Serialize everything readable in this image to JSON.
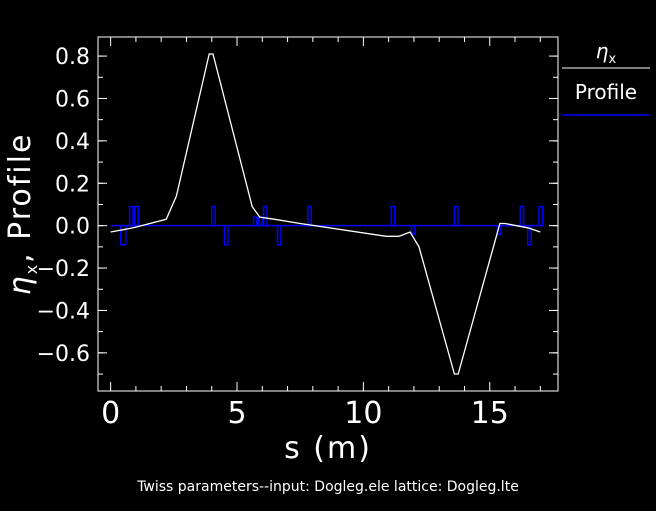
{
  "chart_data": {
    "type": "line",
    "xlabel": "s  (m)",
    "ylabel_symbol": "η",
    "ylabel_sub": "x",
    "ylabel_rest": ",  Profile",
    "caption": "Twiss parameters--input: Dogleg.ele   lattice: Dogleg.lte",
    "xlim": [
      -0.5,
      17.7
    ],
    "ylim": [
      -0.78,
      0.89
    ],
    "xticks": [
      0,
      5,
      10,
      15
    ],
    "yticks": [
      0.8,
      0.6,
      0.4,
      0.2,
      0.0,
      -0.2,
      -0.4,
      -0.6
    ],
    "ytick_labels": [
      "0.8",
      "0.6",
      "0.4",
      "0.2",
      "0.0",
      "−0.2",
      "−0.4",
      "−0.6"
    ],
    "legend": {
      "entries": [
        {
          "symbol": "η",
          "sub": "x",
          "color": "#ffffff"
        },
        {
          "label": "Profile",
          "color": "#0000ff"
        }
      ]
    },
    "series": [
      {
        "name": "ηx",
        "color": "#ffffff",
        "x": [
          0.0,
          0.9,
          2.2,
          2.6,
          3.9,
          4.05,
          5.6,
          5.9,
          6.5,
          7.5,
          10.9,
          11.4,
          11.85,
          12.2,
          13.6,
          13.75,
          15.4,
          15.6,
          16.5,
          17.0
        ],
        "y": [
          -0.03,
          -0.01,
          0.03,
          0.14,
          0.81,
          0.81,
          0.09,
          0.04,
          0.03,
          0.01,
          -0.05,
          -0.05,
          -0.03,
          -0.1,
          -0.7,
          -0.7,
          0.01,
          0.01,
          -0.01,
          -0.03
        ]
      },
      {
        "name": "Profile",
        "color": "#0000ff",
        "baseline": [
          0.0,
          17.0
        ],
        "elements": [
          {
            "x": 0.4,
            "width": 0.2,
            "h": -0.09
          },
          {
            "x": 0.75,
            "width": 0.14,
            "h": 0.09
          },
          {
            "x": 0.95,
            "width": 0.14,
            "h": 0.09
          },
          {
            "x": 4.0,
            "width": 0.14,
            "h": 0.09
          },
          {
            "x": 4.5,
            "width": 0.14,
            "h": -0.09
          },
          {
            "x": 5.65,
            "width": 0.14,
            "h": 0.04
          },
          {
            "x": 5.85,
            "width": 0.14,
            "h": 0.04
          },
          {
            "x": 6.05,
            "width": 0.14,
            "h": 0.09
          },
          {
            "x": 6.6,
            "width": 0.14,
            "h": -0.09
          },
          {
            "x": 7.8,
            "width": 0.14,
            "h": 0.09
          },
          {
            "x": 11.1,
            "width": 0.14,
            "h": 0.09
          },
          {
            "x": 11.9,
            "width": 0.14,
            "h": -0.04
          },
          {
            "x": 13.6,
            "width": 0.14,
            "h": 0.09
          },
          {
            "x": 15.3,
            "width": 0.14,
            "h": -0.04
          },
          {
            "x": 16.2,
            "width": 0.14,
            "h": 0.09
          },
          {
            "x": 16.5,
            "width": 0.14,
            "h": -0.09
          },
          {
            "x": 16.95,
            "width": 0.14,
            "h": 0.09
          }
        ]
      }
    ]
  }
}
